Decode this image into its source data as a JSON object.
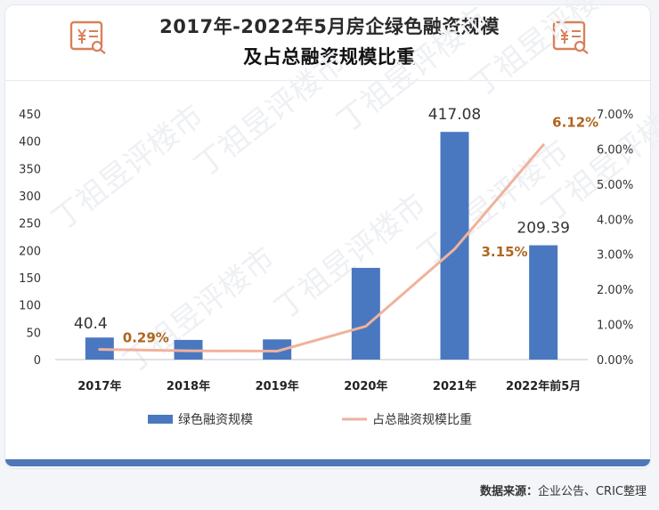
{
  "header": {
    "title_line1": "2017年-2022年5月房企绿色融资规模",
    "title_line2": "及占总融资规模比重",
    "icon_left": "receipt-yen-icon",
    "icon_right": "receipt-yen-icon"
  },
  "source": {
    "label": "数据来源：",
    "text": "企业公告、CRIC整理"
  },
  "watermark": "丁祖昱评楼市",
  "colors": {
    "bar": "#4a78c0",
    "line": "#f0b29c",
    "line_label": "#b0651f",
    "axis_text": "#333333",
    "icon": "#d9805a"
  },
  "chart_data": {
    "type": "bar+line",
    "categories": [
      "2017年",
      "2018年",
      "2019年",
      "2020年",
      "2021年",
      "2022年前5月"
    ],
    "series": [
      {
        "name": "绿色融资规模",
        "type": "bar",
        "axis": "left",
        "values": [
          40.4,
          36,
          37,
          168,
          417.08,
          209.39
        ],
        "labels": [
          "40.4",
          "",
          "",
          "",
          "417.08",
          "209.39"
        ]
      },
      {
        "name": "占总融资规模比重",
        "type": "line",
        "axis": "right",
        "values": [
          0.29,
          0.25,
          0.24,
          0.95,
          3.15,
          6.12
        ],
        "labels": [
          "0.29%",
          "",
          "",
          "",
          "3.15%",
          "6.12%"
        ]
      }
    ],
    "y_left": {
      "min": 0,
      "max": 450,
      "ticks": [
        "0",
        "50",
        "100",
        "150",
        "200",
        "250",
        "300",
        "350",
        "400",
        "450"
      ]
    },
    "y_right": {
      "min": 0,
      "max": 7,
      "ticks": [
        "0.00%",
        "1.00%",
        "2.00%",
        "3.00%",
        "4.00%",
        "5.00%",
        "6.00%",
        "7.00%"
      ]
    },
    "legend": [
      "绿色融资规模",
      "占总融资规模比重"
    ],
    "legend_position": "bottom",
    "grid": false
  }
}
